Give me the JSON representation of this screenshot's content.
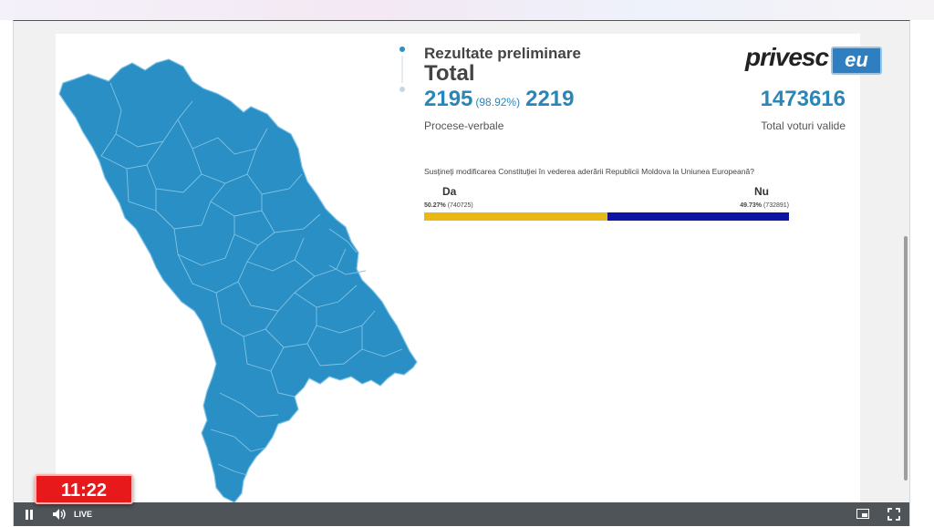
{
  "results": {
    "title": "Rezultate preliminare",
    "subtitle": "Total",
    "protocols_counted": "2195",
    "protocols_percent": "(98.92%)",
    "protocols_total": "2219",
    "protocols_label": "Procese-verbale",
    "valid_votes": "1473616",
    "valid_votes_label": "Total voturi valide"
  },
  "logo": {
    "word": "privesc",
    "suffix": "eu"
  },
  "referendum": {
    "question": "Susţineţi modificarea Constituţiei în vederea aderării Republicii Moldova la Uniunea Europeană?",
    "yes": {
      "label": "Da",
      "percent": "50.27%",
      "votes": "(740725)",
      "share": 0.5027,
      "color": "#e9b815"
    },
    "no": {
      "label": "Nu",
      "percent": "49.73%",
      "votes": "(732891)",
      "share": 0.4973,
      "color": "#0d14a4"
    }
  },
  "map": {
    "fill_color": "#2a8fc4",
    "border_color": "#7fc3e6"
  },
  "player": {
    "live_label": "LIVE",
    "clock": "11:22"
  },
  "icons": [
    "pause-icon",
    "volume-icon",
    "pip-icon",
    "fullscreen-icon",
    "zoom-in-icon",
    "zoom-out-icon"
  ]
}
